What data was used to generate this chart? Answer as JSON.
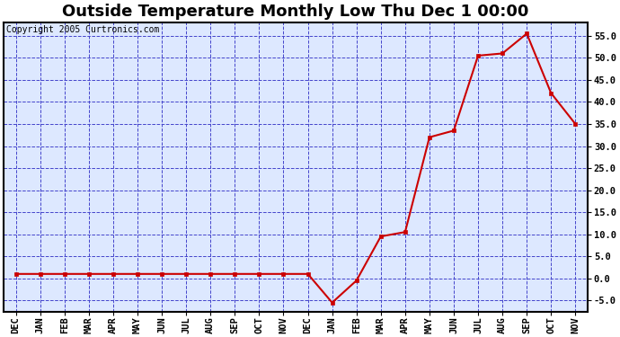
{
  "title": "Outside Temperature Monthly Low Thu Dec 1 00:00",
  "copyright": "Copyright 2005 Curtronics.com",
  "x_labels": [
    "DEC",
    "JAN",
    "FEB",
    "MAR",
    "APR",
    "MAY",
    "JUN",
    "JUL",
    "AUG",
    "SEP",
    "OCT",
    "NOV",
    "DEC",
    "JAN",
    "FEB",
    "MAR",
    "APR",
    "MAY",
    "JUN",
    "JUL",
    "AUG",
    "SEP",
    "OCT",
    "NOV"
  ],
  "y_values": [
    1.0,
    1.0,
    1.0,
    1.0,
    1.0,
    1.0,
    1.0,
    1.0,
    1.0,
    1.0,
    1.0,
    1.0,
    1.0,
    -5.5,
    -0.5,
    9.5,
    10.5,
    32.0,
    33.5,
    50.5,
    51.0,
    55.5,
    42.0,
    35.0
  ],
  "ylim": [
    -7.5,
    58.0
  ],
  "yticks": [
    -5.0,
    0.0,
    5.0,
    10.0,
    15.0,
    20.0,
    25.0,
    30.0,
    35.0,
    40.0,
    45.0,
    50.0,
    55.0
  ],
  "ytick_labels": [
    "-5.0",
    "0.0",
    "5.0",
    "10.0",
    "15.0",
    "20.0",
    "25.0",
    "30.0",
    "35.0",
    "40.0",
    "45.0",
    "50.0",
    "55.0"
  ],
  "line_color": "#cc0000",
  "marker_color": "#cc0000",
  "outer_bg_color": "#ffffff",
  "plot_bg_color": "#dde8ff",
  "grid_color": "#4444cc",
  "axis_color": "#000000",
  "title_fontsize": 13,
  "tick_fontsize": 7.5,
  "copyright_fontsize": 7
}
